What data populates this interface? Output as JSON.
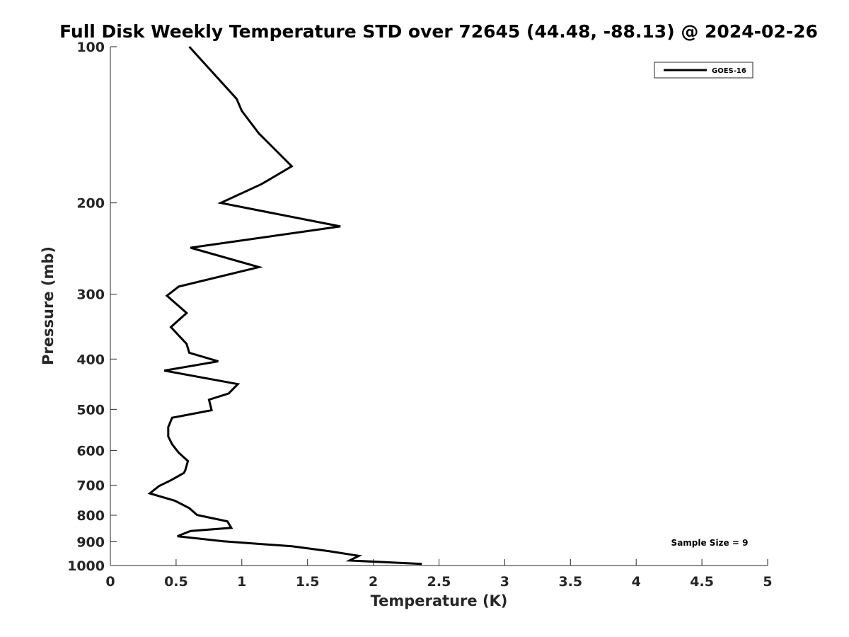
{
  "chart_data": {
    "type": "line",
    "title": "Full Disk Weekly Temperature STD over 72645 (44.48, -88.13) @ 2024-02-26",
    "xlabel": "Temperature (K)",
    "ylabel": "Pressure (mb)",
    "xlim": [
      0,
      5
    ],
    "ylim": [
      100,
      1000
    ],
    "y_scale": "log",
    "y_reversed": true,
    "x_ticks": [
      0,
      0.5,
      1,
      1.5,
      2,
      2.5,
      3,
      3.5,
      4,
      4.5,
      5
    ],
    "x_tick_labels": [
      "0",
      "0.5",
      "1",
      "1.5",
      "2",
      "2.5",
      "3",
      "3.5",
      "4",
      "4.5",
      "5"
    ],
    "y_ticks": [
      100,
      200,
      300,
      400,
      500,
      600,
      700,
      800,
      900,
      1000
    ],
    "y_tick_labels": [
      "100",
      "200",
      "300",
      "400",
      "500",
      "600",
      "700",
      "800",
      "900",
      "1000"
    ],
    "grid": false,
    "legend": {
      "position": "top-right",
      "entries": [
        "GOES-16"
      ]
    },
    "annotation": "Sample Size = 9",
    "series": [
      {
        "name": "GOES-16",
        "color": "#000000",
        "points": [
          [
            0.6,
            100
          ],
          [
            0.96,
            126
          ],
          [
            1.0,
            133
          ],
          [
            1.13,
            147
          ],
          [
            1.38,
            170
          ],
          [
            1.15,
            184
          ],
          [
            0.84,
            200
          ],
          [
            1.75,
            222
          ],
          [
            0.61,
            244
          ],
          [
            1.13,
            266
          ],
          [
            0.52,
            290
          ],
          [
            0.43,
            302
          ],
          [
            0.58,
            326
          ],
          [
            0.46,
            347
          ],
          [
            0.58,
            374
          ],
          [
            0.6,
            389
          ],
          [
            0.82,
            404
          ],
          [
            0.41,
            421
          ],
          [
            0.97,
            447
          ],
          [
            0.9,
            466
          ],
          [
            0.75,
            479
          ],
          [
            0.77,
            502
          ],
          [
            0.47,
            519
          ],
          [
            0.44,
            541
          ],
          [
            0.44,
            564
          ],
          [
            0.47,
            584
          ],
          [
            0.52,
            606
          ],
          [
            0.59,
            629
          ],
          [
            0.57,
            655
          ],
          [
            0.56,
            663
          ],
          [
            0.46,
            685
          ],
          [
            0.37,
            703
          ],
          [
            0.3,
            726
          ],
          [
            0.49,
            750
          ],
          [
            0.6,
            775
          ],
          [
            0.66,
            799
          ],
          [
            0.89,
            822
          ],
          [
            0.92,
            846
          ],
          [
            0.61,
            858
          ],
          [
            0.51,
            878
          ],
          [
            0.86,
            898
          ],
          [
            1.38,
            918
          ],
          [
            1.66,
            938
          ],
          [
            1.89,
            958
          ],
          [
            1.82,
            978
          ],
          [
            2.37,
            993
          ]
        ]
      }
    ]
  }
}
